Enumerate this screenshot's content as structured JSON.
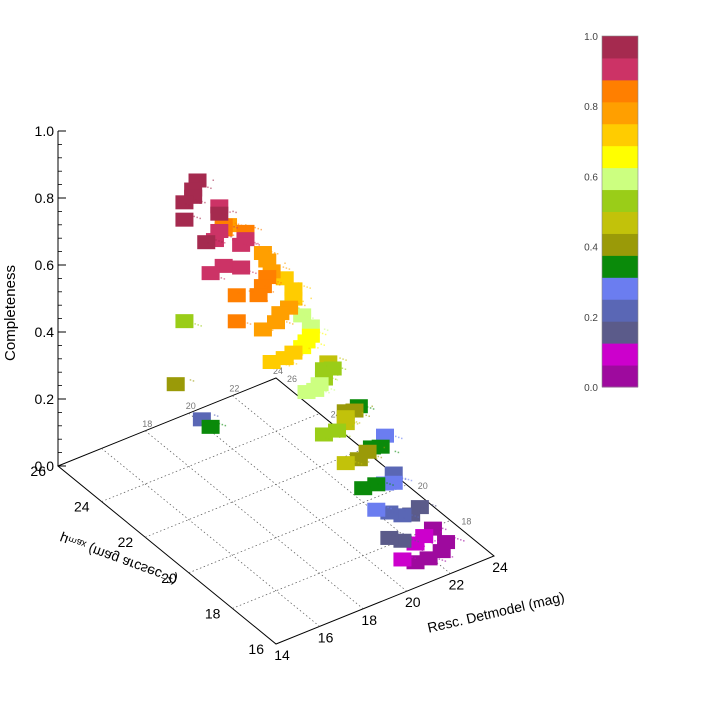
{
  "chart_data": {
    "type": "scatter",
    "zlabel": "Completeness",
    "xlabel": "Resc. Detmodel (mag)",
    "ylabel": "μₘₐₓ (mag arcsec⁻²)",
    "xlim": [
      14,
      24
    ],
    "ylim": [
      16,
      26
    ],
    "zlim": [
      0,
      1
    ],
    "x_ticks": [
      "14",
      "16",
      "18",
      "20",
      "22",
      "24"
    ],
    "y_ticks": [
      "16",
      "18",
      "20",
      "22",
      "24",
      "26"
    ],
    "z_ticks": [
      "0.0",
      "0.2",
      "0.4",
      "0.6",
      "0.8",
      "1.0"
    ],
    "back_x_ticks": [
      "18",
      "20",
      "22",
      "24"
    ],
    "back_y_ticks": [
      "18",
      "20",
      "22",
      "24",
      "26"
    ],
    "colorbar": {
      "ticks": [
        "0.0",
        "0.2",
        "0.4",
        "0.6",
        "0.8",
        "1.0"
      ],
      "colors": [
        "#9e0a9e",
        "#cc00cc",
        "#5b5b8a",
        "#5a67b5",
        "#6b7df0",
        "#0a8a0a",
        "#9a9a08",
        "#c2c20a",
        "#9acd18",
        "#ccff80",
        "#ffff00",
        "#ffcc00",
        "#ff9f00",
        "#ff7f00",
        "#cc3366",
        "#a52a4f"
      ]
    },
    "series": [
      {
        "values": [
          {
            "x": 14.8,
            "y": 21.0,
            "z": 0.98
          },
          {
            "x": 15.2,
            "y": 21.4,
            "z": 1.0
          },
          {
            "x": 15.8,
            "y": 21.6,
            "z": 0.99
          },
          {
            "x": 16.2,
            "y": 22.0,
            "z": 0.98
          },
          {
            "x": 16.8,
            "y": 22.4,
            "z": 0.97
          },
          {
            "x": 15.0,
            "y": 20.2,
            "z": 0.95
          },
          {
            "x": 15.6,
            "y": 20.4,
            "z": 0.93
          },
          {
            "x": 16.2,
            "y": 20.8,
            "z": 0.92
          },
          {
            "x": 16.6,
            "y": 21.2,
            "z": 0.94
          },
          {
            "x": 17.0,
            "y": 21.6,
            "z": 0.93
          },
          {
            "x": 14.6,
            "y": 19.6,
            "z": 0.9
          },
          {
            "x": 15.4,
            "y": 19.8,
            "z": 0.89
          },
          {
            "x": 16.0,
            "y": 19.6,
            "z": 0.88
          },
          {
            "x": 16.6,
            "y": 20.2,
            "z": 0.9
          },
          {
            "x": 17.2,
            "y": 20.6,
            "z": 0.88
          },
          {
            "x": 17.6,
            "y": 21.0,
            "z": 0.87
          },
          {
            "x": 17.4,
            "y": 21.8,
            "z": 0.84
          },
          {
            "x": 17.8,
            "y": 22.2,
            "z": 0.82
          },
          {
            "x": 18.2,
            "y": 22.4,
            "z": 0.8
          },
          {
            "x": 15.2,
            "y": 19.0,
            "z": 0.85
          },
          {
            "x": 16.0,
            "y": 18.8,
            "z": 0.84
          },
          {
            "x": 16.6,
            "y": 19.2,
            "z": 0.83
          },
          {
            "x": 17.2,
            "y": 19.6,
            "z": 0.82
          },
          {
            "x": 17.8,
            "y": 20.0,
            "z": 0.8
          },
          {
            "x": 18.2,
            "y": 20.6,
            "z": 0.79
          },
          {
            "x": 18.6,
            "y": 21.2,
            "z": 0.77
          },
          {
            "x": 14.6,
            "y": 18.4,
            "z": 0.82
          },
          {
            "x": 15.6,
            "y": 18.2,
            "z": 0.78
          },
          {
            "x": 16.4,
            "y": 18.4,
            "z": 0.77
          },
          {
            "x": 17.0,
            "y": 18.8,
            "z": 0.76
          },
          {
            "x": 17.6,
            "y": 19.0,
            "z": 0.75
          },
          {
            "x": 18.2,
            "y": 19.4,
            "z": 0.74
          },
          {
            "x": 18.8,
            "y": 20.0,
            "z": 0.72
          },
          {
            "x": 19.2,
            "y": 20.8,
            "z": 0.7
          },
          {
            "x": 15.4,
            "y": 17.6,
            "z": 0.72
          },
          {
            "x": 16.2,
            "y": 17.8,
            "z": 0.7
          },
          {
            "x": 16.8,
            "y": 18.0,
            "z": 0.69
          },
          {
            "x": 17.4,
            "y": 18.2,
            "z": 0.68
          },
          {
            "x": 18.0,
            "y": 18.6,
            "z": 0.66
          },
          {
            "x": 18.6,
            "y": 19.0,
            "z": 0.64
          },
          {
            "x": 19.2,
            "y": 19.6,
            "z": 0.62
          },
          {
            "x": 19.6,
            "y": 20.4,
            "z": 0.6
          },
          {
            "x": 20.0,
            "y": 21.4,
            "z": 0.56
          },
          {
            "x": 16.6,
            "y": 17.2,
            "z": 0.62
          },
          {
            "x": 17.2,
            "y": 17.4,
            "z": 0.6
          },
          {
            "x": 17.8,
            "y": 17.8,
            "z": 0.58
          },
          {
            "x": 18.4,
            "y": 18.2,
            "z": 0.56
          },
          {
            "x": 19.0,
            "y": 18.8,
            "z": 0.54
          },
          {
            "x": 19.8,
            "y": 19.2,
            "z": 0.5
          },
          {
            "x": 20.4,
            "y": 20.0,
            "z": 0.46
          },
          {
            "x": 16.8,
            "y": 16.6,
            "z": 0.52
          },
          {
            "x": 17.6,
            "y": 16.8,
            "z": 0.5
          },
          {
            "x": 18.4,
            "y": 17.2,
            "z": 0.48
          },
          {
            "x": 19.0,
            "y": 17.8,
            "z": 0.45
          },
          {
            "x": 19.6,
            "y": 18.4,
            "z": 0.42
          },
          {
            "x": 20.4,
            "y": 18.8,
            "z": 0.38
          },
          {
            "x": 21.2,
            "y": 19.4,
            "z": 0.34
          },
          {
            "x": 17.4,
            "y": 16.2,
            "z": 0.44
          },
          {
            "x": 18.2,
            "y": 16.4,
            "z": 0.42
          },
          {
            "x": 19.0,
            "y": 16.8,
            "z": 0.4
          },
          {
            "x": 19.8,
            "y": 17.4,
            "z": 0.36
          },
          {
            "x": 20.6,
            "y": 17.8,
            "z": 0.32
          },
          {
            "x": 21.4,
            "y": 18.4,
            "z": 0.3
          },
          {
            "x": 18.0,
            "y": 16.0,
            "z": 0.36
          },
          {
            "x": 18.8,
            "y": 16.2,
            "z": 0.34
          },
          {
            "x": 19.6,
            "y": 16.6,
            "z": 0.3
          },
          {
            "x": 20.4,
            "y": 17.0,
            "z": 0.26
          },
          {
            "x": 21.0,
            "y": 17.6,
            "z": 0.24
          },
          {
            "x": 18.6,
            "y": 16.0,
            "z": 0.28
          },
          {
            "x": 19.4,
            "y": 16.2,
            "z": 0.24
          },
          {
            "x": 20.2,
            "y": 16.4,
            "z": 0.2
          },
          {
            "x": 21.0,
            "y": 16.8,
            "z": 0.16
          },
          {
            "x": 21.8,
            "y": 17.2,
            "z": 0.14
          },
          {
            "x": 19.2,
            "y": 16.0,
            "z": 0.18
          },
          {
            "x": 20.0,
            "y": 16.2,
            "z": 0.14
          },
          {
            "x": 20.8,
            "y": 16.4,
            "z": 0.1
          },
          {
            "x": 21.6,
            "y": 16.8,
            "z": 0.08
          },
          {
            "x": 22.4,
            "y": 17.2,
            "z": 0.06
          },
          {
            "x": 19.8,
            "y": 16.0,
            "z": 0.1
          },
          {
            "x": 20.6,
            "y": 16.2,
            "z": 0.06
          },
          {
            "x": 21.4,
            "y": 16.4,
            "z": 0.04
          },
          {
            "x": 22.2,
            "y": 16.6,
            "z": 0.03
          },
          {
            "x": 22.8,
            "y": 17.0,
            "z": 0.02
          },
          {
            "x": 16.4,
            "y": 22.6,
            "z": 0.55
          },
          {
            "x": 15.4,
            "y": 22.0,
            "z": 0.42
          },
          {
            "x": 16.0,
            "y": 21.0,
            "z": 0.33
          },
          {
            "x": 17.4,
            "y": 22.8,
            "z": 0.22
          }
        ]
      }
    ]
  }
}
